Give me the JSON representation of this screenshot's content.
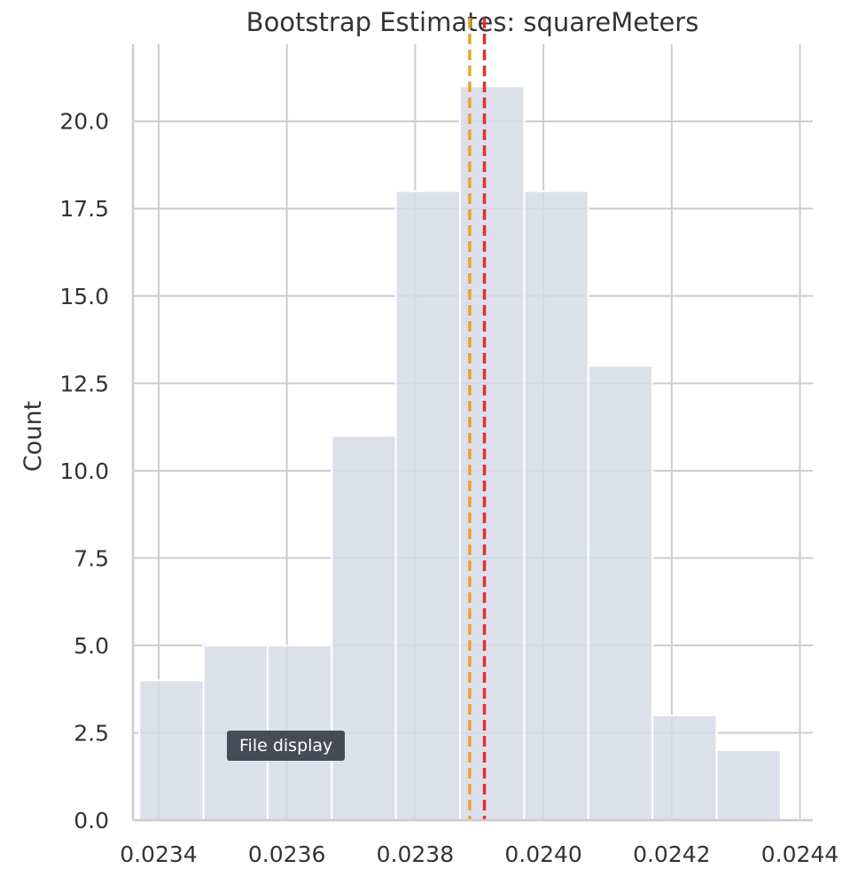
{
  "chart_data": {
    "type": "bar",
    "title": "Bootstrap Estimates: squareMeters",
    "xlabel": "",
    "ylabel": "Count",
    "xlim": [
      0.02336,
      0.02442
    ],
    "ylim": [
      0,
      22.2
    ],
    "x_ticks": [
      "0.0234",
      "0.0236",
      "0.0238",
      "0.0240",
      "0.0242",
      "0.0244"
    ],
    "x_tick_values": [
      0.0234,
      0.0236,
      0.0238,
      0.024,
      0.0242,
      0.0244
    ],
    "y_ticks": [
      "0.0",
      "2.5",
      "5.0",
      "7.5",
      "10.0",
      "12.5",
      "15.0",
      "17.5",
      "20.0"
    ],
    "y_tick_values": [
      0,
      2.5,
      5,
      7.5,
      10,
      12.5,
      15,
      17.5,
      20
    ],
    "bins": [
      {
        "x0": 0.02337,
        "x1": 0.02347,
        "count": 4
      },
      {
        "x0": 0.02347,
        "x1": 0.02357,
        "count": 5
      },
      {
        "x0": 0.02357,
        "x1": 0.02367,
        "count": 5
      },
      {
        "x0": 0.02367,
        "x1": 0.02377,
        "count": 11
      },
      {
        "x0": 0.02377,
        "x1": 0.02387,
        "count": 18
      },
      {
        "x0": 0.02387,
        "x1": 0.02397,
        "count": 21
      },
      {
        "x0": 0.02397,
        "x1": 0.02407,
        "count": 18
      },
      {
        "x0": 0.02407,
        "x1": 0.02417,
        "count": 13
      },
      {
        "x0": 0.02417,
        "x1": 0.02427,
        "count": 3
      },
      {
        "x0": 0.02427,
        "x1": 0.02437,
        "count": 2
      }
    ],
    "vlines": [
      {
        "x": 0.023885,
        "color": "#f0a030",
        "style": "dashed"
      },
      {
        "x": 0.023908,
        "color": "#e0322e",
        "style": "dashed"
      }
    ],
    "bar_color": "#d5dae8",
    "grid": true,
    "legend": "none"
  },
  "tooltip": {
    "text": "File display"
  }
}
